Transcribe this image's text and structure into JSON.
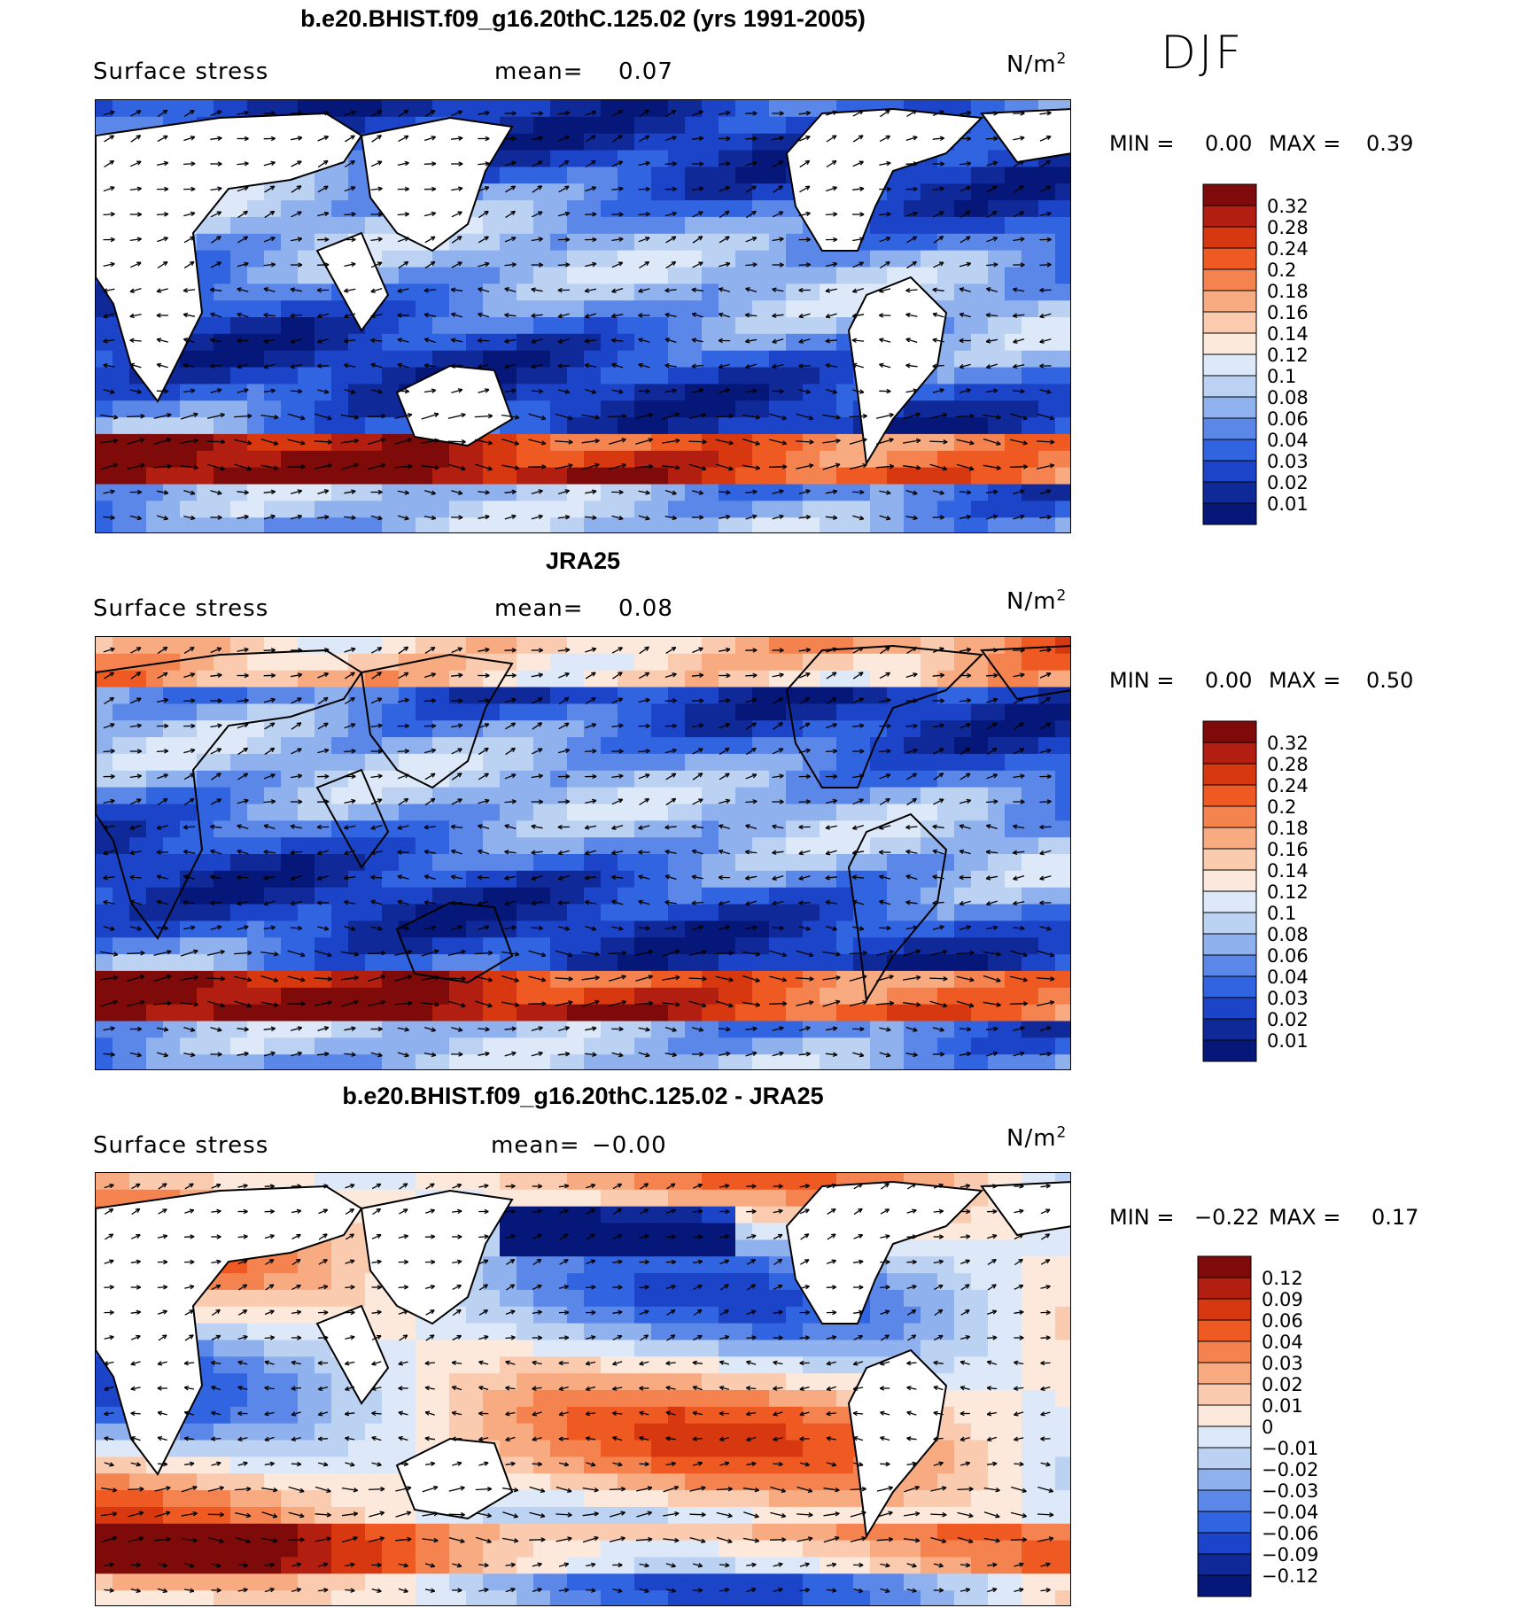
{
  "season": "DJF",
  "units_base": "N/m",
  "units_exp": "2",
  "chart_data": [
    {
      "type": "heatmap",
      "title": "b.e20.BHIST.f09_g16.20thC.125.02 (yrs 1991-2005)",
      "variable": "Surface stress",
      "mean_label": "mean=",
      "mean_value": "0.07",
      "min_label": "MIN =",
      "min_value": "0.00",
      "max_label": "MAX =",
      "max_value": "0.39",
      "colorbar_levels": [
        "0.32",
        "0.28",
        "0.24",
        "0.2",
        "0.18",
        "0.16",
        "0.14",
        "0.12",
        "0.1",
        "0.08",
        "0.06",
        "0.04",
        "0.03",
        "0.02",
        "0.01"
      ],
      "colorbar_colors": [
        "#7f0a0a",
        "#b21e0f",
        "#d8380f",
        "#ef5a22",
        "#f5834f",
        "#f8aa80",
        "#fbcbb0",
        "#fde9dc",
        "#dde9f8",
        "#bcd2f3",
        "#8fb2ee",
        "#5b87e8",
        "#3164e0",
        "#1b44c8",
        "#0f2a98",
        "#06177a"
      ]
    },
    {
      "type": "heatmap",
      "title": "JRA25",
      "variable": "Surface stress",
      "mean_label": "mean=",
      "mean_value": "0.08",
      "min_label": "MIN =",
      "min_value": "0.00",
      "max_label": "MAX =",
      "max_value": "0.50",
      "colorbar_levels": [
        "0.32",
        "0.28",
        "0.24",
        "0.2",
        "0.18",
        "0.16",
        "0.14",
        "0.12",
        "0.1",
        "0.08",
        "0.06",
        "0.04",
        "0.03",
        "0.02",
        "0.01"
      ],
      "colorbar_colors": [
        "#7f0a0a",
        "#b21e0f",
        "#d8380f",
        "#ef5a22",
        "#f5834f",
        "#f8aa80",
        "#fbcbb0",
        "#fde9dc",
        "#dde9f8",
        "#bcd2f3",
        "#8fb2ee",
        "#5b87e8",
        "#3164e0",
        "#1b44c8",
        "#0f2a98",
        "#06177a"
      ]
    },
    {
      "type": "heatmap",
      "title": "b.e20.BHIST.f09_g16.20thC.125.02 - JRA25",
      "variable": "Surface stress",
      "mean_label": "mean=",
      "mean_value": "−0.00",
      "min_label": "MIN =",
      "min_value": "−0.22",
      "max_label": "MAX =",
      "max_value": "0.17",
      "colorbar_levels": [
        "0.12",
        "0.09",
        "0.06",
        "0.04",
        "0.03",
        "0.02",
        "0.01",
        "0",
        "−0.01",
        "−0.02",
        "−0.03",
        "−0.04",
        "−0.06",
        "−0.09",
        "−0.12"
      ],
      "colorbar_colors": [
        "#7f0a0a",
        "#b21e0f",
        "#d8380f",
        "#ef5a22",
        "#f5834f",
        "#f8aa80",
        "#fbcbb0",
        "#fde9dc",
        "#dde9f8",
        "#bcd2f3",
        "#8fb2ee",
        "#5b87e8",
        "#3164e0",
        "#1b44c8",
        "#0f2a98",
        "#06177a"
      ]
    }
  ]
}
